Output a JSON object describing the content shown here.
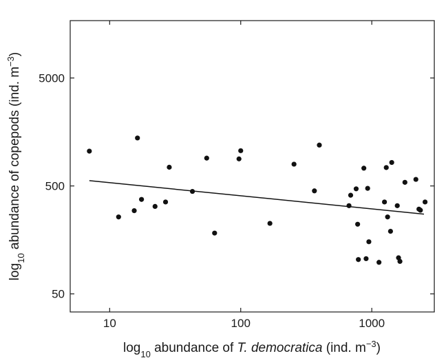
{
  "chart_data": {
    "type": "scatter",
    "title": "",
    "xscale": "log",
    "yscale": "log",
    "xlim": [
      5,
      3000
    ],
    "ylim": [
      34,
      17000
    ],
    "x_ticks": [
      10,
      100,
      1000
    ],
    "x_tick_labels": [
      "10",
      "100",
      "1000"
    ],
    "y_ticks": [
      50,
      500,
      5000
    ],
    "y_tick_labels": [
      "50",
      "500",
      "5000"
    ],
    "xlabel": {
      "prefix": "log",
      "sub": "10",
      "mid": " abundance of ",
      "italic": "T. democratica",
      "unit": " (ind. m",
      "sup": "−3",
      "end": ")"
    },
    "ylabel": {
      "prefix": "log",
      "sub": "10",
      "mid": " abundance of copepods (ind. m",
      "sup": "−3",
      "end": ")"
    },
    "grid": false,
    "series": [
      {
        "points": [
          [
            7,
            1050
          ],
          [
            11.7,
            258
          ],
          [
            15.4,
            295
          ],
          [
            16.3,
            1390
          ],
          [
            17.5,
            375
          ],
          [
            22.2,
            323
          ],
          [
            26.7,
            355
          ],
          [
            28.5,
            745
          ],
          [
            42.8,
            445
          ],
          [
            55,
            905
          ],
          [
            63.2,
            183
          ],
          [
            97,
            890
          ],
          [
            100,
            1060
          ],
          [
            167,
            225
          ],
          [
            255,
            795
          ],
          [
            365,
            450
          ],
          [
            398,
            1195
          ],
          [
            670,
            328
          ],
          [
            690,
            410
          ],
          [
            760,
            470
          ],
          [
            780,
            221
          ],
          [
            790,
            104
          ],
          [
            870,
            730
          ],
          [
            905,
            106
          ],
          [
            930,
            475
          ],
          [
            950,
            152
          ],
          [
            1135,
            98
          ],
          [
            1250,
            355
          ],
          [
            1290,
            740
          ],
          [
            1320,
            258
          ],
          [
            1390,
            190
          ],
          [
            1420,
            825
          ],
          [
            1565,
            328
          ],
          [
            1600,
            108
          ],
          [
            1640,
            100
          ],
          [
            1790,
            540
          ],
          [
            2170,
            575
          ],
          [
            2290,
            305
          ],
          [
            2350,
            298
          ],
          [
            2550,
            355
          ]
        ],
        "color": "#111111"
      }
    ],
    "trendline": {
      "x": [
        7,
        2500
      ],
      "y": [
        560,
        274
      ]
    }
  }
}
